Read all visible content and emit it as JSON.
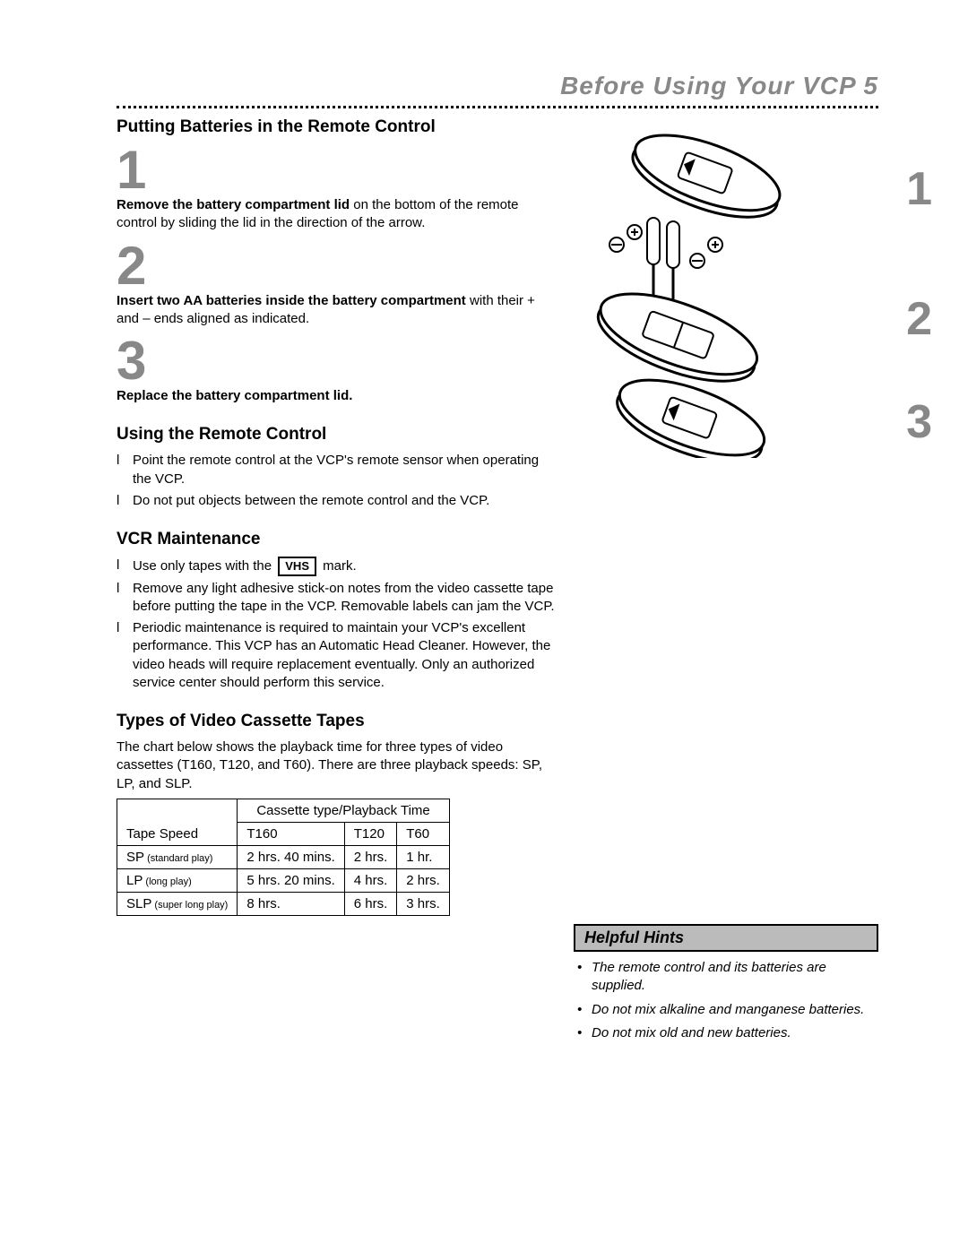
{
  "header": {
    "title": "Before Using Your VCP  5"
  },
  "section1": {
    "title": "Putting Batteries in the Remote Control",
    "steps": [
      {
        "num": "1",
        "bold": "Remove the battery compartment lid",
        "rest": " on the bottom of the remote control by sliding the lid in the direction of the arrow."
      },
      {
        "num": "2",
        "bold": "Insert two AA batteries inside the battery compartment",
        "rest": " with their + and – ends aligned as indicated."
      },
      {
        "num": "3",
        "bold": "Replace the battery compartment lid.",
        "rest": ""
      }
    ]
  },
  "section2": {
    "title": "Using the Remote Control",
    "bullets": [
      "Point the remote control at the VCP's remote sensor when operating the VCP.",
      "Do not put objects between the remote control and the VCP."
    ]
  },
  "section3": {
    "title": "VCR Maintenance",
    "bullets": [
      {
        "pre": "Use only tapes with the ",
        "post": " mark.",
        "vhs": true
      },
      {
        "text": "Remove any light adhesive stick-on notes from the video cassette tape before putting the tape in the VCP. Removable labels can jam the VCP."
      },
      {
        "text": "Periodic maintenance is required to maintain your VCP's excellent performance. This VCP has an Automatic Head Cleaner. However, the video heads will require replacement eventually. Only an authorized service center should perform this service."
      }
    ]
  },
  "section4": {
    "title": "Types of Video Cassette Tapes",
    "intro": "The chart below shows the playback time for three types of video cassettes (T160, T120, and T60). There are three playback speeds: SP, LP, and SLP.",
    "table": {
      "corner": "Tape Speed",
      "group_head": "Cassette type/Playback Time",
      "columns": [
        "T160",
        "T120",
        "T60"
      ],
      "rows": [
        {
          "label_main": "SP",
          "label_sub": " (standard play)",
          "cells": [
            "2 hrs. 40 mins.",
            "2 hrs.",
            "1 hr."
          ]
        },
        {
          "label_main": "LP",
          "label_sub": " (long play)",
          "cells": [
            "5 hrs. 20 mins.",
            "4 hrs.",
            "2 hrs."
          ]
        },
        {
          "label_main": "SLP",
          "label_sub": " (super long play)",
          "cells": [
            "8 hrs.",
            "6 hrs.",
            "3 hrs."
          ]
        }
      ]
    }
  },
  "diagram_nums": [
    "1",
    "2",
    "3"
  ],
  "hints": {
    "title": "Helpful Hints",
    "items": [
      "The remote control and its batteries are supplied.",
      "Do not mix alkaline and manganese batteries.",
      "Do not mix old and new batteries."
    ]
  }
}
